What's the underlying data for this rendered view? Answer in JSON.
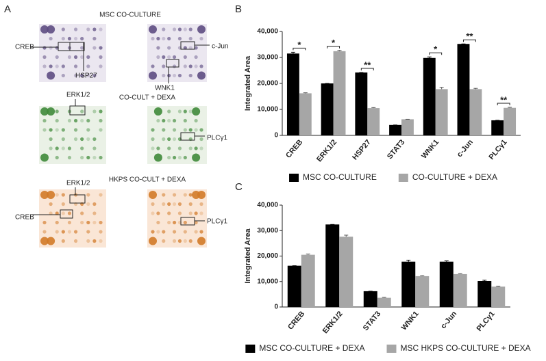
{
  "panel_labels": [
    "A",
    "B",
    "C"
  ],
  "blots": {
    "titles": [
      "MSC CO-CULTURE",
      "CO-CULT + DEXA",
      "HKPS CO-CULT + DEXA"
    ],
    "row1_labels": [
      "CREB",
      "HSP27",
      "c-Jun",
      "WNK1"
    ],
    "row2_labels": [
      "ERK1/2",
      "PLCγ1"
    ],
    "row3_labels": [
      "ERK1/2",
      "CREB",
      "PLCγ1"
    ]
  },
  "chart_data": [
    {
      "type": "bar",
      "y_label": "Integrated Area",
      "categories": [
        "CREB",
        "ERK1/2",
        "HSP27",
        "STAT3",
        "WNK1",
        "c-Jun",
        "PLCγ1"
      ],
      "series": [
        {
          "name": "MSC CO-CULTURE",
          "color": "#000000",
          "values": [
            31500,
            20000,
            24200,
            4000,
            29800,
            35200,
            5800
          ],
          "errors": [
            500,
            0,
            0,
            0,
            400,
            0,
            0
          ]
        },
        {
          "name": "CO-CULTURE + DEXA",
          "color": "#a6a6a6",
          "values": [
            16200,
            32400,
            10500,
            6200,
            17800,
            17800,
            10600
          ],
          "errors": [
            200,
            300,
            200,
            0,
            700,
            300,
            200
          ]
        }
      ],
      "ylim": [
        0,
        40000
      ],
      "yticks": [
        0,
        {
          "value": 10000,
          "label": "10,000"
        },
        {
          "value": 20000,
          "label": "20,000"
        },
        {
          "value": 30000,
          "label": "30,000"
        },
        {
          "value": 40000,
          "label": "40,000"
        }
      ],
      "annotations": [
        {
          "text": "*",
          "category": "CREB"
        },
        {
          "text": "*",
          "category": "ERK1/2"
        },
        {
          "text": "**",
          "category": "HSP27"
        },
        {
          "text": "*",
          "category": "WNK1"
        },
        {
          "text": "**",
          "category": "c-Jun"
        },
        {
          "text": "**",
          "category": "PLCγ1"
        }
      ]
    },
    {
      "type": "bar",
      "y_label": "Integrated Area",
      "categories": [
        "CREB",
        "ERK1/2",
        "STAT3",
        "WNK1",
        "c-Jun",
        "PLCγ1"
      ],
      "series": [
        {
          "name": "MSC CO-CULTURE + DEXA",
          "color": "#000000",
          "values": [
            16200,
            32400,
            6200,
            17800,
            17800,
            10200
          ],
          "errors": [
            0,
            0,
            0,
            600,
            300,
            300
          ]
        },
        {
          "name": "MSC HKPS CO-CULTURE + DEXA",
          "color": "#a6a6a6",
          "values": [
            20500,
            27600,
            3600,
            12100,
            12900,
            8000
          ],
          "errors": [
            300,
            600,
            200,
            200,
            200,
            200
          ]
        }
      ],
      "ylim": [
        0,
        40000
      ],
      "yticks": [
        0,
        {
          "value": 10000,
          "label": "10,000"
        },
        {
          "value": 20000,
          "label": "20,000"
        },
        {
          "value": 30000,
          "label": "30,000"
        },
        {
          "value": 40000,
          "label": "40,000"
        }
      ],
      "annotations": []
    }
  ]
}
